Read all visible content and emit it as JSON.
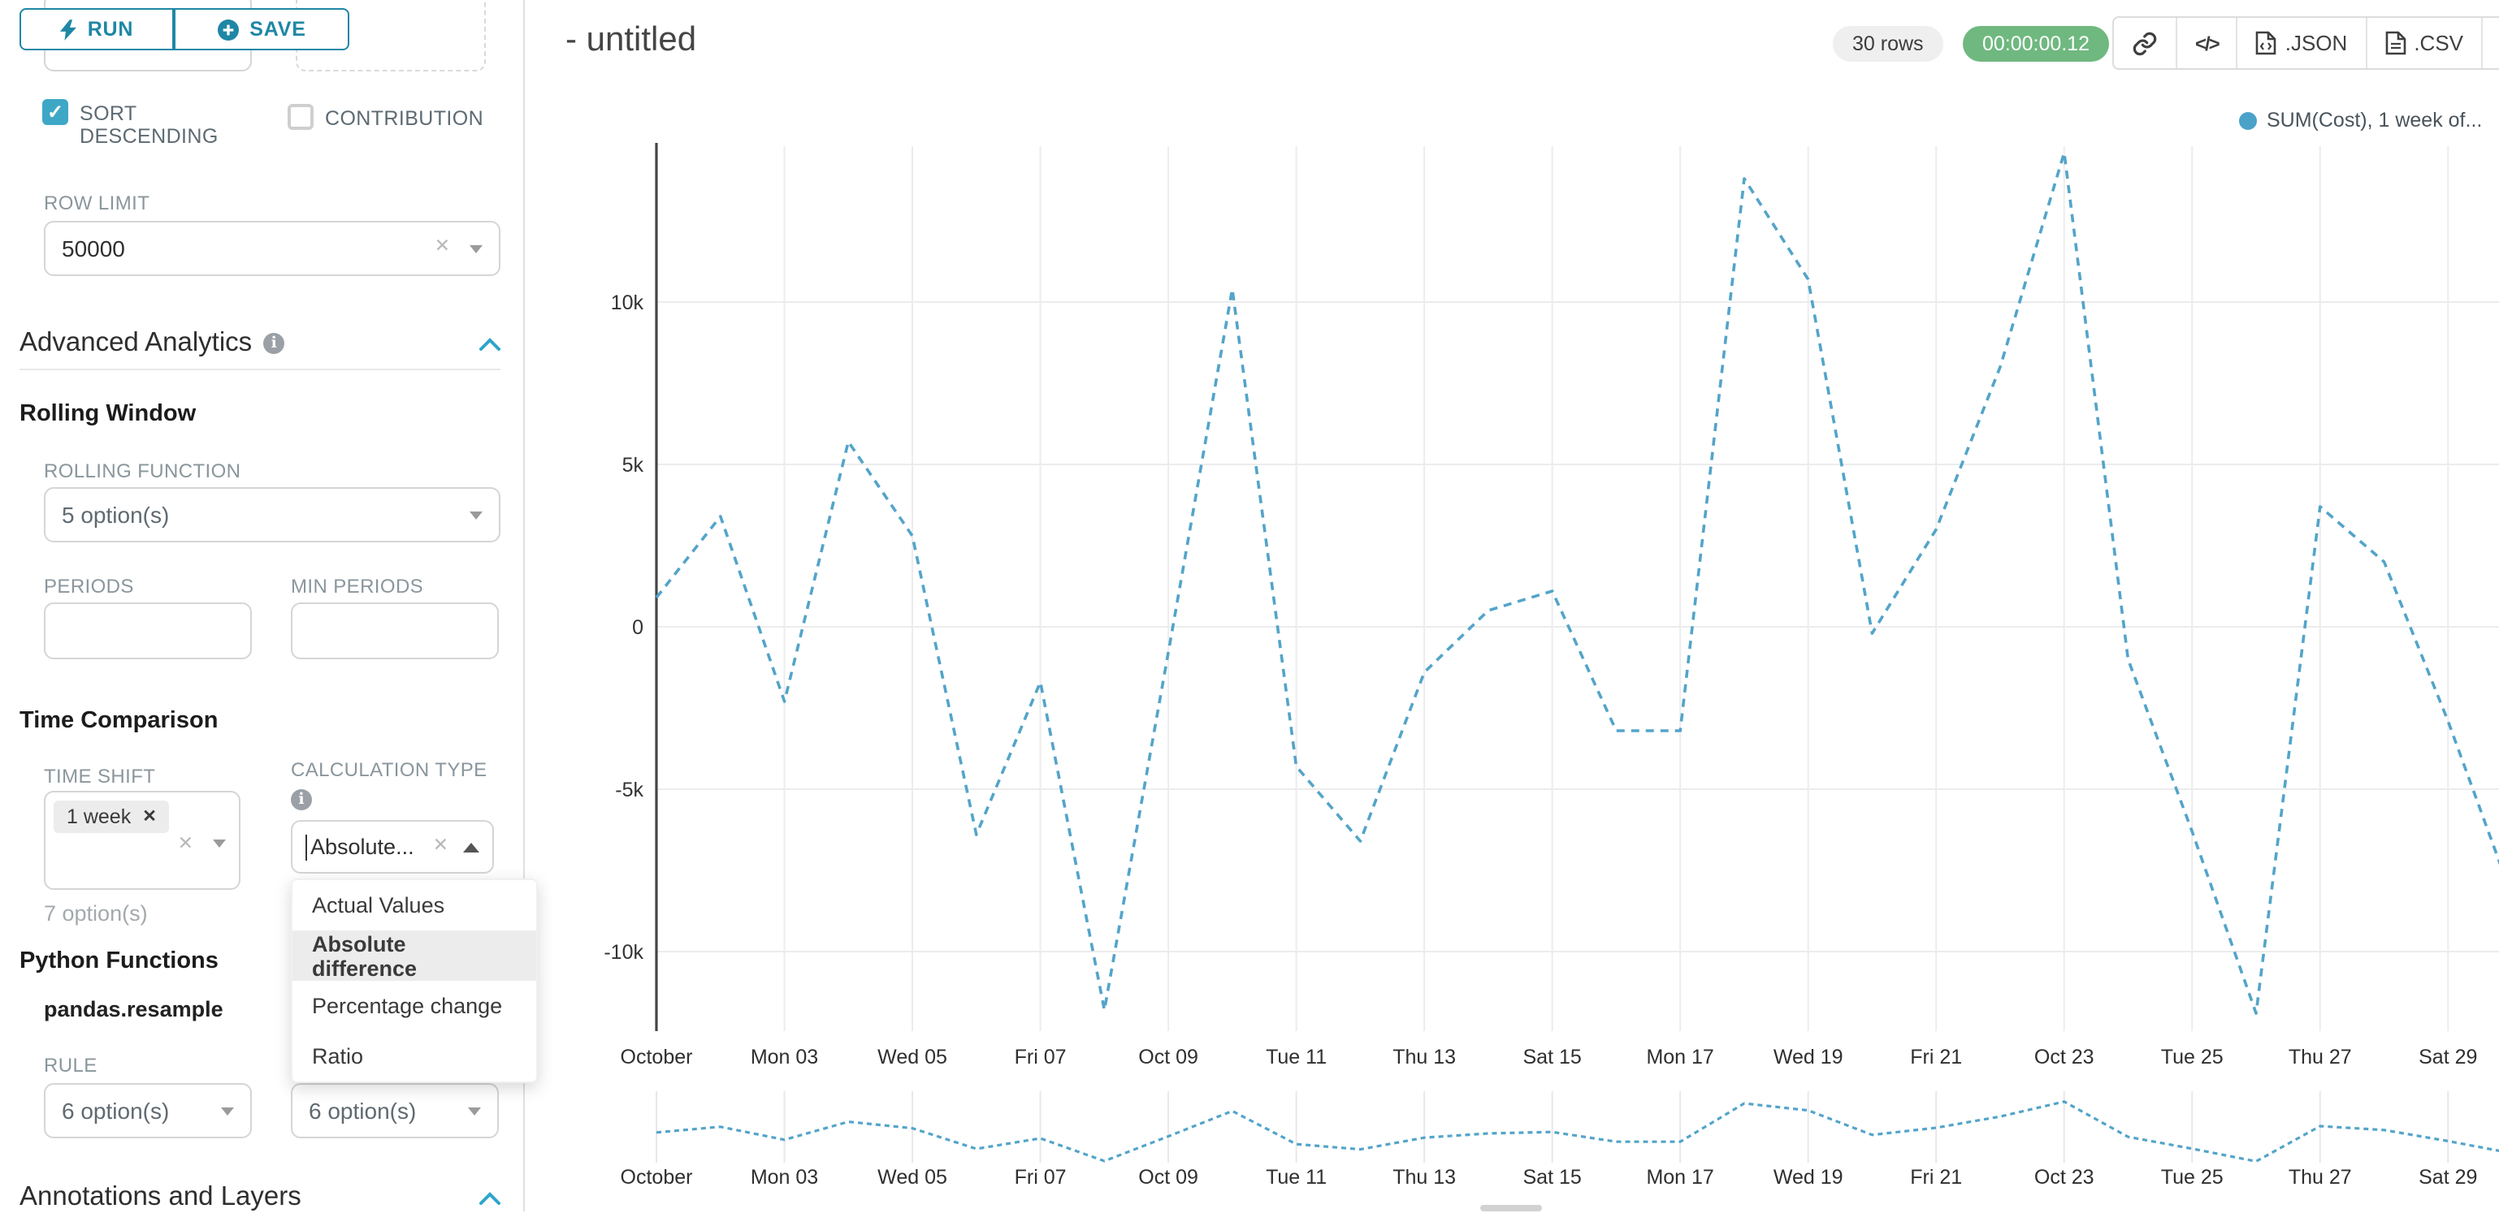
{
  "toolbar": {
    "run_label": "RUN",
    "save_label": "SAVE"
  },
  "panel": {
    "top_left_select_value": "7 option(s)",
    "sort_descending_label": "SORT DESCENDING",
    "contribution_label": "CONTRIBUTION",
    "row_limit_label": "ROW LIMIT",
    "row_limit_value": "50000",
    "advanced_analytics_title": "Advanced Analytics",
    "rolling_window": {
      "title": "Rolling Window",
      "rolling_function_label": "ROLLING FUNCTION",
      "rolling_function_value": "5 option(s)",
      "periods_label": "PERIODS",
      "min_periods_label": "MIN PERIODS"
    },
    "time_comparison": {
      "title": "Time Comparison",
      "time_shift_label": "TIME SHIFT",
      "time_shift_tag": "1 week",
      "time_shift_placeholder": "7 option(s)",
      "calculation_type_label": "CALCULATION TYPE",
      "calculation_type_value": "Absolute...",
      "dropdown_options": [
        "Actual Values",
        "Absolute difference",
        "Percentage change",
        "Ratio"
      ],
      "selected_option": "Absolute difference"
    },
    "python_functions": {
      "title": "Python Functions",
      "subtitle": "pandas.resample",
      "rule_label": "RULE",
      "rule_value_left": "6 option(s)",
      "rule_value_right": "6 option(s)"
    },
    "annotations_title": "Annotations and Layers"
  },
  "header": {
    "title": "- untitled",
    "rows_badge": "30 rows",
    "timer_badge": "00:00:00.12",
    "json_label": ".JSON",
    "csv_label": ".CSV"
  },
  "colors": {
    "accent_teal": "#1f87a5",
    "checkbox_teal": "#3fa7c6",
    "timer_green": "#6fb87f",
    "line_blue": "#53a4c9"
  },
  "chart_data": {
    "type": "line",
    "title": "",
    "legend": [
      {
        "label": "SUM(Cost), 1 week of...",
        "color": "#4aa2c9"
      }
    ],
    "x": [
      "Oct 01",
      "Oct 02",
      "Oct 03",
      "Oct 04",
      "Oct 05",
      "Oct 06",
      "Oct 07",
      "Oct 08",
      "Oct 09",
      "Oct 10",
      "Oct 11",
      "Oct 12",
      "Oct 13",
      "Oct 14",
      "Oct 15",
      "Oct 16",
      "Oct 17",
      "Oct 18",
      "Oct 19",
      "Oct 20",
      "Oct 21",
      "Oct 22",
      "Oct 23",
      "Oct 24",
      "Oct 25",
      "Oct 26",
      "Oct 27",
      "Oct 28",
      "Oct 29",
      "Oct 30"
    ],
    "series": [
      {
        "name": "SUM(Cost), 1 week offset",
        "values": [
          900,
          3400,
          -2300,
          5700,
          2800,
          -6400,
          -1700,
          -11800,
          -800,
          10400,
          -4300,
          -6600,
          -1400,
          500,
          1100,
          -3200,
          -3200,
          13800,
          10700,
          -200,
          3000,
          8000,
          14600,
          -1000,
          -6300,
          -11900,
          3700,
          2000,
          -2900,
          -8300
        ]
      }
    ],
    "tick_indices": [
      0,
      2,
      4,
      6,
      8,
      10,
      12,
      14,
      16,
      18,
      20,
      22,
      24,
      26,
      28
    ],
    "tick_labels": [
      "October",
      "Mon 03",
      "Wed 05",
      "Fri 07",
      "Oct 09",
      "Tue 11",
      "Thu 13",
      "Sat 15",
      "Mon 17",
      "Wed 19",
      "Fri 21",
      "Oct 23",
      "Tue 25",
      "Thu 27",
      "Sat 29"
    ],
    "y_ticks": [
      {
        "value": 10000,
        "label": "10k"
      },
      {
        "value": 5000,
        "label": "5k"
      },
      {
        "value": 0,
        "label": "0"
      },
      {
        "value": -5000,
        "label": "-5k"
      },
      {
        "value": -10000,
        "label": "-10k"
      }
    ],
    "ylim": [
      -12500,
      14900
    ],
    "line_style": "dashed",
    "line_color": "#53a4c9",
    "grid": true,
    "legend_position": "top-right",
    "has_mini_preview": true
  }
}
